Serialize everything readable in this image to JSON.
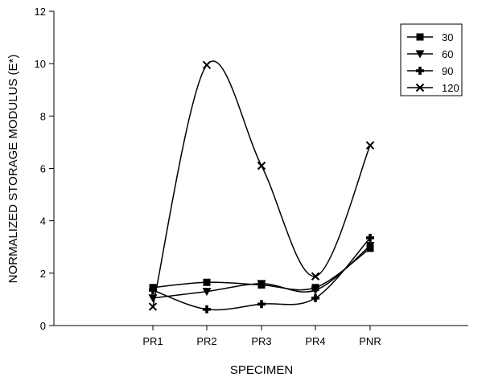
{
  "chart_data": {
    "type": "line",
    "categories": [
      "PR1",
      "PR2",
      "PR3",
      "PR4",
      "PNR"
    ],
    "xlabel": "SPECIMEN",
    "ylabel": "NORMALIZED STORAGE MODULUS (E*)",
    "ylim": [
      0,
      12
    ],
    "yticks": [
      "0",
      "2",
      "4",
      "6",
      "8",
      "10",
      "12"
    ],
    "grid": false,
    "legend_position": "top-right",
    "series": [
      {
        "name": "30",
        "marker": "square",
        "values": [
          1.45,
          1.65,
          1.55,
          1.45,
          2.95
        ]
      },
      {
        "name": "60",
        "marker": "triangle-down",
        "values": [
          1.05,
          1.3,
          1.6,
          1.35,
          3.05
        ]
      },
      {
        "name": "90",
        "marker": "plus-filled",
        "values": [
          1.35,
          0.62,
          0.82,
          1.05,
          3.35
        ]
      },
      {
        "name": "120",
        "marker": "x",
        "values": [
          0.72,
          9.95,
          6.1,
          1.88,
          6.88
        ]
      }
    ]
  }
}
